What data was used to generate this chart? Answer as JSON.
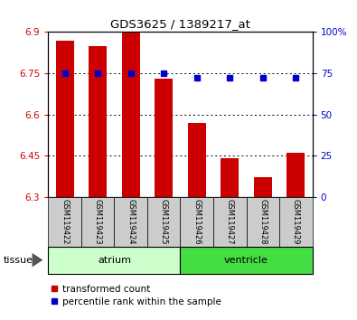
{
  "title": "GDS3625 / 1389217_at",
  "samples": [
    "GSM119422",
    "GSM119423",
    "GSM119424",
    "GSM119425",
    "GSM119426",
    "GSM119427",
    "GSM119428",
    "GSM119429"
  ],
  "bar_values": [
    6.87,
    6.85,
    6.9,
    6.73,
    6.57,
    6.44,
    6.37,
    6.46
  ],
  "percentile_values": [
    75,
    75,
    75,
    75,
    72,
    72,
    72,
    72
  ],
  "ymin": 6.3,
  "ymax": 6.9,
  "y2min": 0,
  "y2max": 100,
  "yticks": [
    6.3,
    6.45,
    6.6,
    6.75,
    6.9
  ],
  "ytick_labels": [
    "6.3",
    "6.45",
    "6.6",
    "6.75",
    "6.9"
  ],
  "y2ticks": [
    0,
    25,
    50,
    75,
    100
  ],
  "y2tick_labels": [
    "0",
    "25",
    "50",
    "75",
    "100%"
  ],
  "bar_color": "#cc0000",
  "dot_color": "#0000cc",
  "bar_bottom": 6.3,
  "groups": [
    {
      "label": "atrium",
      "start": 0,
      "end": 4,
      "color": "#ccffcc"
    },
    {
      "label": "ventricle",
      "start": 4,
      "end": 8,
      "color": "#44dd44"
    }
  ],
  "tissue_label": "tissue",
  "legend_items": [
    {
      "label": "transformed count",
      "color": "#cc0000"
    },
    {
      "label": "percentile rank within the sample",
      "color": "#0000cc"
    }
  ],
  "tick_label_color_left": "#cc0000",
  "tick_label_color_right": "#0000cc",
  "bar_width": 0.55,
  "sample_bg_color": "#cccccc"
}
